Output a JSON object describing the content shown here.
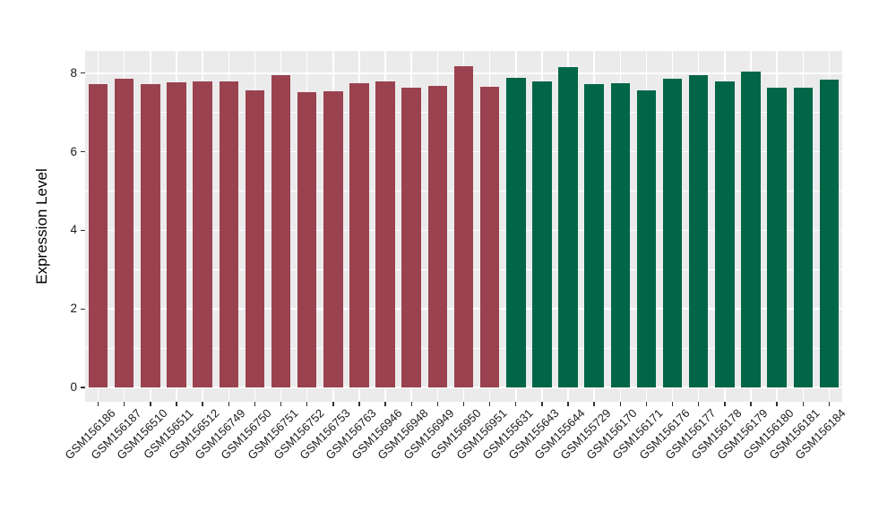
{
  "figure": {
    "background": "#FFFFFF",
    "panel_background": "#EBEBEB",
    "gridline_color": "#FFFFFF",
    "tick_mark_color": "#333333",
    "axis_text_color": "#1A1A1A",
    "axis_title_color": "#000000"
  },
  "chart_data": {
    "type": "bar",
    "title": "",
    "xlabel": "",
    "ylabel": "Expression Level",
    "ylim": [
      0,
      8.6
    ],
    "yticks_major": [
      0,
      2,
      4,
      6,
      8
    ],
    "yticks_minor": [
      1,
      3,
      5,
      7
    ],
    "grid": "white major+minor horizontal lines and major vertical lines on grey panel",
    "legend_position": "none",
    "xticklabel_angle": 45,
    "categories": [
      "GSM156186",
      "GSM156187",
      "GSM156510",
      "GSM156511",
      "GSM156512",
      "GSM156749",
      "GSM156750",
      "GSM156751",
      "GSM156752",
      "GSM156753",
      "GSM156763",
      "GSM156946",
      "GSM156948",
      "GSM156949",
      "GSM156950",
      "GSM156951",
      "GSM155631",
      "GSM155643",
      "GSM155644",
      "GSM155729",
      "GSM156170",
      "GSM156171",
      "GSM156176",
      "GSM156177",
      "GSM156178",
      "GSM156179",
      "GSM156180",
      "GSM156181",
      "GSM156184"
    ],
    "values": [
      7.73,
      7.86,
      7.72,
      7.77,
      7.8,
      7.8,
      7.57,
      7.94,
      7.51,
      7.53,
      7.75,
      7.8,
      7.63,
      7.68,
      8.17,
      7.65,
      7.88,
      7.79,
      8.16,
      7.72,
      7.75,
      7.57,
      7.85,
      7.95,
      7.78,
      8.03,
      7.63,
      7.63,
      7.83
    ],
    "bar_groups": [
      "group-1",
      "group-1",
      "group-1",
      "group-1",
      "group-1",
      "group-1",
      "group-1",
      "group-1",
      "group-1",
      "group-1",
      "group-1",
      "group-1",
      "group-1",
      "group-1",
      "group-1",
      "group-1",
      "group-2",
      "group-2",
      "group-2",
      "group-2",
      "group-2",
      "group-2",
      "group-2",
      "group-2",
      "group-2",
      "group-2",
      "group-2",
      "group-2",
      "group-2"
    ],
    "group_colors": {
      "group-1": "#9A4250",
      "group-2": "#016648"
    }
  }
}
